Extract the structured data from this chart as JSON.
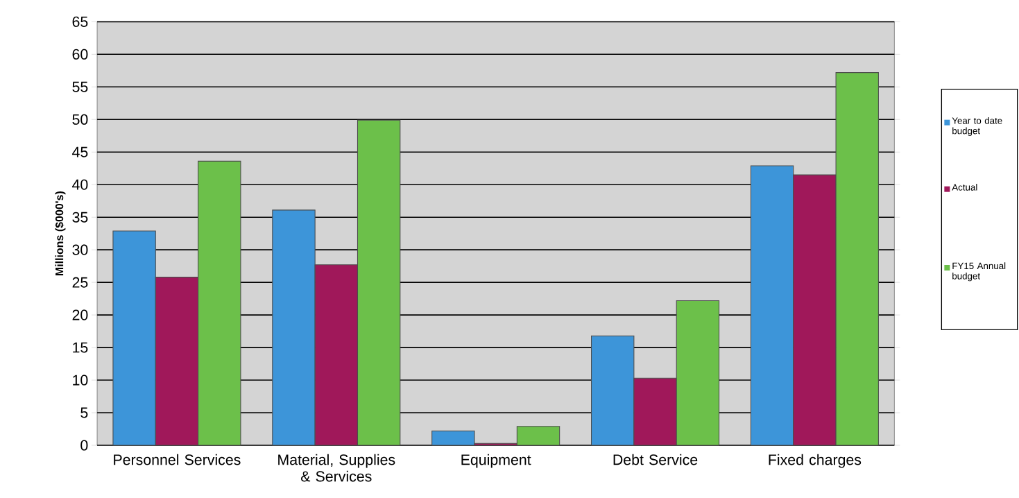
{
  "chart_data": {
    "type": "bar",
    "ylabel": "Millions ($000's)",
    "categories": [
      "Personnel Services",
      "Material, Supplies & Services",
      "Equipment",
      "Debt Service",
      "Fixed charges"
    ],
    "series": [
      {
        "name": "Year to date budget",
        "color": "#3d95d9",
        "values": [
          32.9,
          36.1,
          2.2,
          16.8,
          42.9
        ]
      },
      {
        "name": "Actual",
        "color": "#a0185a",
        "values": [
          25.8,
          27.7,
          0.3,
          10.3,
          41.5
        ]
      },
      {
        "name": "FY15 Annual budget",
        "color": "#6cc04a",
        "values": [
          43.6,
          49.9,
          2.9,
          22.2,
          57.2
        ]
      }
    ],
    "ylim": [
      0,
      65
    ],
    "yticks": [
      0,
      5,
      10,
      15,
      20,
      25,
      30,
      35,
      40,
      45,
      50,
      55,
      60,
      65
    ],
    "grid": "y",
    "legend": "right"
  }
}
